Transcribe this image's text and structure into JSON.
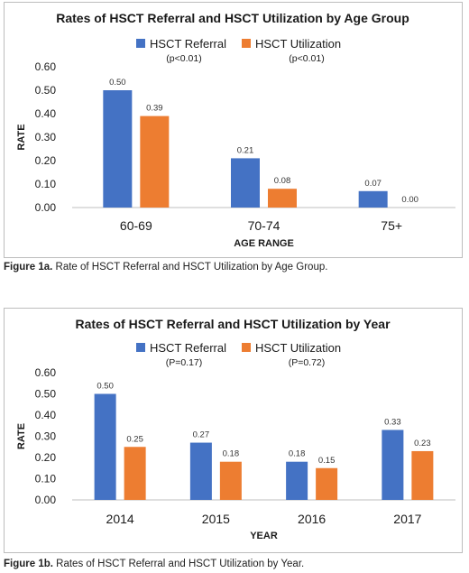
{
  "chart_data": [
    {
      "type": "bar",
      "title": "Rates of HSCT Referral and HSCT Utilization by Age Group",
      "xlabel": "AGE RANGE",
      "ylabel": "RATE",
      "categories": [
        "60-69",
        "70-74",
        "75+"
      ],
      "ylim": [
        0,
        0.6
      ],
      "yticks": [
        "0.00",
        "0.10",
        "0.20",
        "0.30",
        "0.40",
        "0.50",
        "0.60"
      ],
      "grid": false,
      "legend_position": "top",
      "series": [
        {
          "name": "HSCT Referral",
          "p_value": "(p<0.01)",
          "color": "#4472C4",
          "values": [
            0.5,
            0.21,
            0.07
          ],
          "labels": [
            "0.50",
            "0.21",
            "0.07"
          ]
        },
        {
          "name": "HSCT Utilization",
          "p_value": "(p<0.01)",
          "color": "#ED7D31",
          "values": [
            0.39,
            0.08,
            0.0
          ],
          "labels": [
            "0.39",
            "0.08",
            "0.00"
          ]
        }
      ]
    },
    {
      "type": "bar",
      "title": "Rates of HSCT Referral and HSCT Utilization by Year",
      "xlabel": "YEAR",
      "ylabel": "RATE",
      "categories": [
        "2014",
        "2015",
        "2016",
        "2017"
      ],
      "ylim": [
        0,
        0.6
      ],
      "yticks": [
        "0.00",
        "0.10",
        "0.20",
        "0.30",
        "0.40",
        "0.50",
        "0.60"
      ],
      "grid": false,
      "legend_position": "top",
      "series": [
        {
          "name": "HSCT Referral",
          "p_value": "(P=0.17)",
          "color": "#4472C4",
          "values": [
            0.5,
            0.27,
            0.18,
            0.33
          ],
          "labels": [
            "0.50",
            "0.27",
            "0.18",
            "0.33"
          ]
        },
        {
          "name": "HSCT Utilization",
          "p_value": "(P=0.72)",
          "color": "#ED7D31",
          "values": [
            0.25,
            0.18,
            0.15,
            0.23
          ],
          "labels": [
            "0.25",
            "0.18",
            "0.15",
            "0.23"
          ]
        }
      ]
    }
  ],
  "captions": [
    {
      "label": "Figure 1a.",
      "text": " Rate of HSCT Referral and HSCT Utilization by Age Group."
    },
    {
      "label": "Figure 1b.",
      "text": " Rates of HSCT Referral and HSCT Utilization by Year."
    }
  ]
}
